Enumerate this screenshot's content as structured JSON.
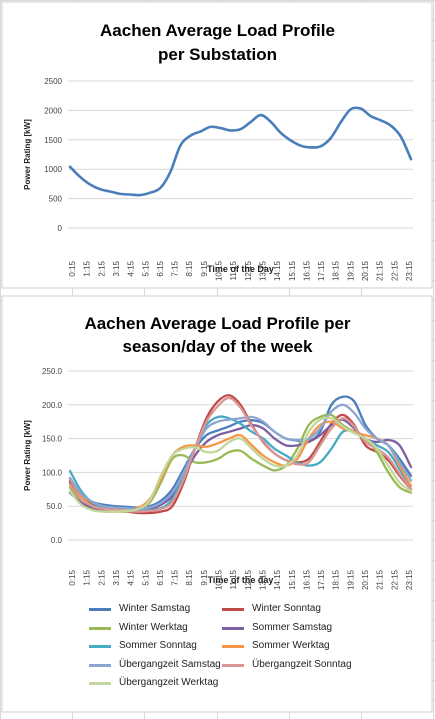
{
  "chart_data": [
    {
      "type": "line",
      "title_lines": [
        "Aachen Average Load Profile",
        "per Substation"
      ],
      "xlabel": "Time of the Day",
      "ylabel": "Power Rating [kW]",
      "ylim": [
        0,
        2500
      ],
      "yticks": [
        "0",
        "500",
        "1000",
        "1500",
        "2000",
        "2500"
      ],
      "grid": true,
      "x_tick_labels": [
        "0:15",
        "1:15",
        "2:15",
        "3:15",
        "4:15",
        "5:15",
        "6:15",
        "7:15",
        "8:15",
        "9:15",
        "10:15",
        "11:15",
        "12:15",
        "13:15",
        "14:15",
        "15:15",
        "16:15",
        "17:15",
        "18:15",
        "19:15",
        "20:15",
        "21:15",
        "22:15",
        "23:15"
      ],
      "series": [
        {
          "name": "Average",
          "color": "#4a7ebb",
          "values": [
            1040,
            870,
            740,
            660,
            620,
            580,
            570,
            560,
            600,
            680,
            950,
            1400,
            1570,
            1640,
            1720,
            1700,
            1660,
            1680,
            1800,
            1920,
            1810,
            1620,
            1490,
            1400,
            1370,
            1390,
            1530,
            1800,
            2020,
            2030,
            1900,
            1830,
            1740,
            1550,
            1170
          ]
        }
      ]
    },
    {
      "type": "line",
      "title_lines": [
        "Aachen Average Load Profile per",
        "season/day of the week"
      ],
      "xlabel": "Time of the day",
      "ylabel": "Power Rating [kW]",
      "ylim": [
        0,
        250
      ],
      "yticks": [
        "0.0",
        "50.0",
        "100.0",
        "150.0",
        "200.0",
        "250.0"
      ],
      "grid": true,
      "x_tick_labels": [
        "0:15",
        "1:15",
        "2:15",
        "3:15",
        "4:15",
        "5:15",
        "6:15",
        "7:15",
        "8:15",
        "9:15",
        "10:15",
        "11:15",
        "12:15",
        "13:15",
        "14:15",
        "15:15",
        "16:15",
        "17:15",
        "18:15",
        "19:15",
        "20:15",
        "21:15",
        "22:15",
        "23:15"
      ],
      "legend_position": "bottom",
      "series": [
        {
          "name": "Winter Samstag",
          "color": "#4a7ebb",
          "values": [
            85,
            66,
            56,
            52,
            50,
            49,
            48,
            50,
            58,
            75,
            105,
            135,
            155,
            162,
            168,
            175,
            177,
            173,
            160,
            150,
            147,
            146,
            160,
            200,
            212,
            205,
            170,
            150,
            140,
            120,
            95
          ]
        },
        {
          "name": "Winter Sonntag",
          "color": "#be4b48",
          "values": [
            88,
            65,
            52,
            47,
            44,
            42,
            40,
            40,
            42,
            50,
            85,
            135,
            180,
            205,
            214,
            200,
            170,
            145,
            128,
            118,
            115,
            120,
            145,
            172,
            185,
            170,
            140,
            130,
            118,
            95,
            75
          ]
        },
        {
          "name": "Winter Werktag",
          "color": "#98b954",
          "values": [
            78,
            55,
            45,
            42,
            42,
            42,
            44,
            55,
            85,
            120,
            125,
            115,
            115,
            120,
            130,
            132,
            120,
            110,
            103,
            110,
            135,
            170,
            182,
            185,
            170,
            160,
            150,
            130,
            100,
            78,
            70
          ]
        },
        {
          "name": "Sommer Samstag",
          "color": "#7d60a0",
          "values": [
            70,
            55,
            48,
            45,
            44,
            43,
            43,
            45,
            52,
            65,
            95,
            125,
            145,
            155,
            160,
            165,
            170,
            165,
            150,
            140,
            140,
            145,
            155,
            170,
            178,
            165,
            150,
            145,
            148,
            140,
            108
          ]
        },
        {
          "name": "Sommer Sonntag",
          "color": "#46aac5",
          "values": [
            102,
            72,
            55,
            48,
            46,
            45,
            44,
            44,
            47,
            60,
            95,
            135,
            170,
            182,
            180,
            172,
            160,
            150,
            135,
            125,
            115,
            110,
            115,
            135,
            160,
            160,
            150,
            140,
            130,
            105,
            75
          ]
        },
        {
          "name": "Sommer Werktag",
          "color": "#f79646",
          "values": [
            90,
            65,
            50,
            46,
            45,
            45,
            48,
            60,
            90,
            125,
            138,
            140,
            138,
            143,
            150,
            155,
            140,
            125,
            115,
            110,
            120,
            150,
            170,
            175,
            165,
            160,
            155,
            150,
            140,
            110,
            80
          ]
        },
        {
          "name": "Übergangzeit Samstag",
          "color": "#8ca5d2",
          "values": [
            92,
            68,
            56,
            50,
            48,
            47,
            46,
            48,
            55,
            70,
            100,
            135,
            165,
            175,
            178,
            180,
            182,
            175,
            160,
            150,
            148,
            150,
            165,
            190,
            200,
            188,
            165,
            150,
            140,
            115,
            88
          ]
        },
        {
          "name": "Übergangzeit Sonntag",
          "color": "#d99694",
          "values": [
            82,
            60,
            50,
            46,
            44,
            43,
            42,
            43,
            46,
            56,
            90,
            135,
            175,
            198,
            210,
            196,
            168,
            146,
            128,
            118,
            112,
            115,
            140,
            165,
            180,
            168,
            145,
            135,
            122,
            98,
            75
          ]
        },
        {
          "name": "Übergangzeit Werktag",
          "color": "#c3d69b",
          "values": [
            72,
            52,
            44,
            42,
            42,
            43,
            46,
            58,
            95,
            125,
            135,
            137,
            130,
            132,
            145,
            150,
            135,
            120,
            110,
            110,
            125,
            160,
            178,
            180,
            168,
            158,
            150,
            135,
            110,
            85,
            72
          ]
        }
      ]
    }
  ]
}
